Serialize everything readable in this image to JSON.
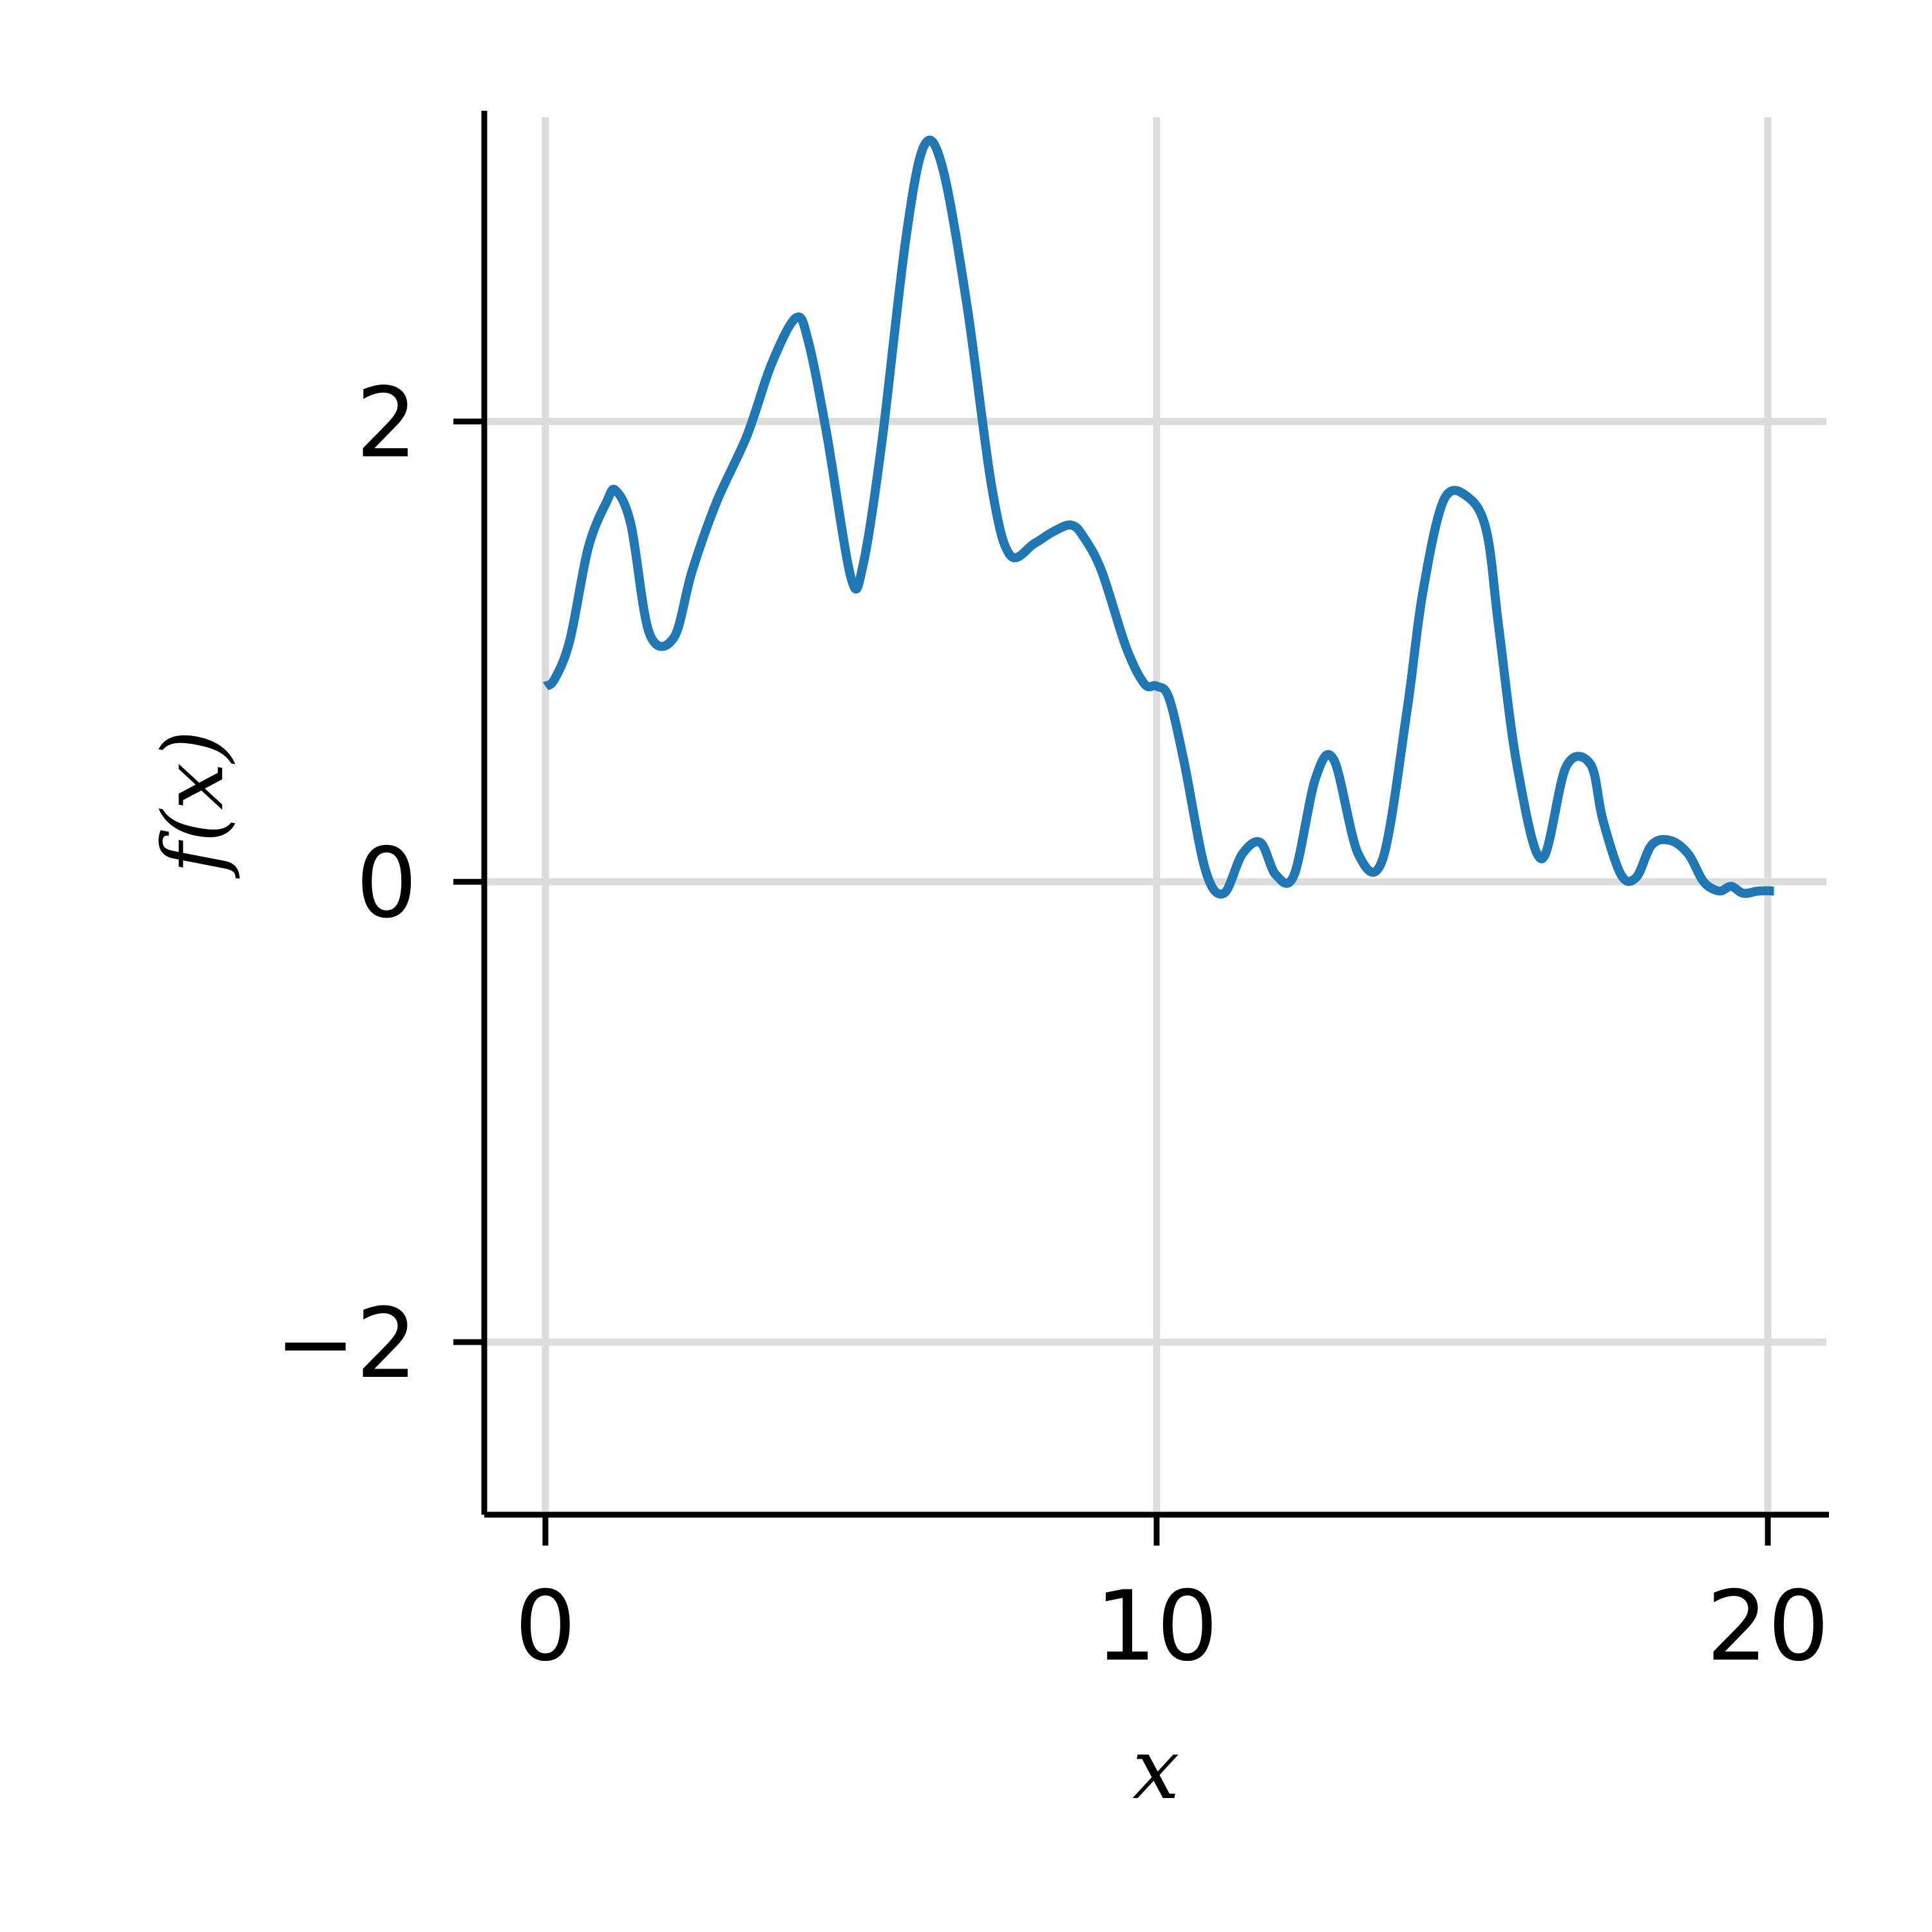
{
  "chart_data": {
    "type": "line",
    "title": "",
    "xlabel": "x",
    "ylabel": "f(x)",
    "xlim": [
      -1,
      21
    ],
    "ylim": [
      -2.75,
      3.35
    ],
    "x_ticks": [
      0,
      10,
      20
    ],
    "x_tick_labels": [
      "0",
      "10",
      "20"
    ],
    "y_ticks": [
      -2,
      0,
      2
    ],
    "y_tick_labels": [
      "−2",
      "0",
      "2"
    ],
    "grid": true,
    "legend": "none",
    "colors": {
      "series": "#1f77b4",
      "grid": "#dcdcdc",
      "axes": "#000000"
    },
    "series": [
      {
        "x": [
          0,
          0.15,
          0.4,
          0.7,
          1.0,
          1.15,
          1.4,
          1.7,
          2.1,
          2.4,
          2.8,
          3.3,
          3.7,
          4.1,
          4.3,
          4.6,
          5.0,
          5.2,
          5.5,
          5.9,
          6.2,
          6.5,
          6.9,
          7.3,
          7.6,
          8.0,
          8.3,
          8.6,
          8.8,
          9.1,
          9.5,
          9.8,
          10.0,
          10.2,
          10.45,
          10.8,
          11.1,
          11.4,
          11.7,
          11.95,
          12.25,
          12.6,
          12.9,
          13.3,
          13.7,
          14.1,
          14.35,
          14.7,
          15.1,
          15.4,
          15.6,
          15.9,
          16.3,
          16.7,
          17.1,
          17.3,
          17.6,
          17.85,
          18.1,
          18.4,
          18.7,
          18.95,
          19.2,
          19.4,
          19.6,
          19.85,
          20.1
        ],
        "y": [
          0.85,
          0.88,
          1.05,
          1.45,
          1.65,
          1.7,
          1.55,
          1.08,
          1.06,
          1.35,
          1.65,
          1.94,
          2.25,
          2.45,
          2.35,
          1.95,
          1.32,
          1.38,
          1.9,
          2.8,
          3.2,
          3.1,
          2.5,
          1.72,
          1.42,
          1.47,
          1.52,
          1.55,
          1.5,
          1.35,
          1.02,
          0.86,
          0.85,
          0.8,
          0.52,
          0.05,
          -0.05,
          0.12,
          0.17,
          0.03,
          0.03,
          0.45,
          0.53,
          0.12,
          0.1,
          0.75,
          1.25,
          1.66,
          1.67,
          1.52,
          1.1,
          0.5,
          0.1,
          0.5,
          0.51,
          0.27,
          0.03,
          0.02,
          0.16,
          0.18,
          0.12,
          0.0,
          -0.04,
          -0.02,
          -0.05,
          -0.04,
          -0.04
        ]
      }
    ]
  }
}
